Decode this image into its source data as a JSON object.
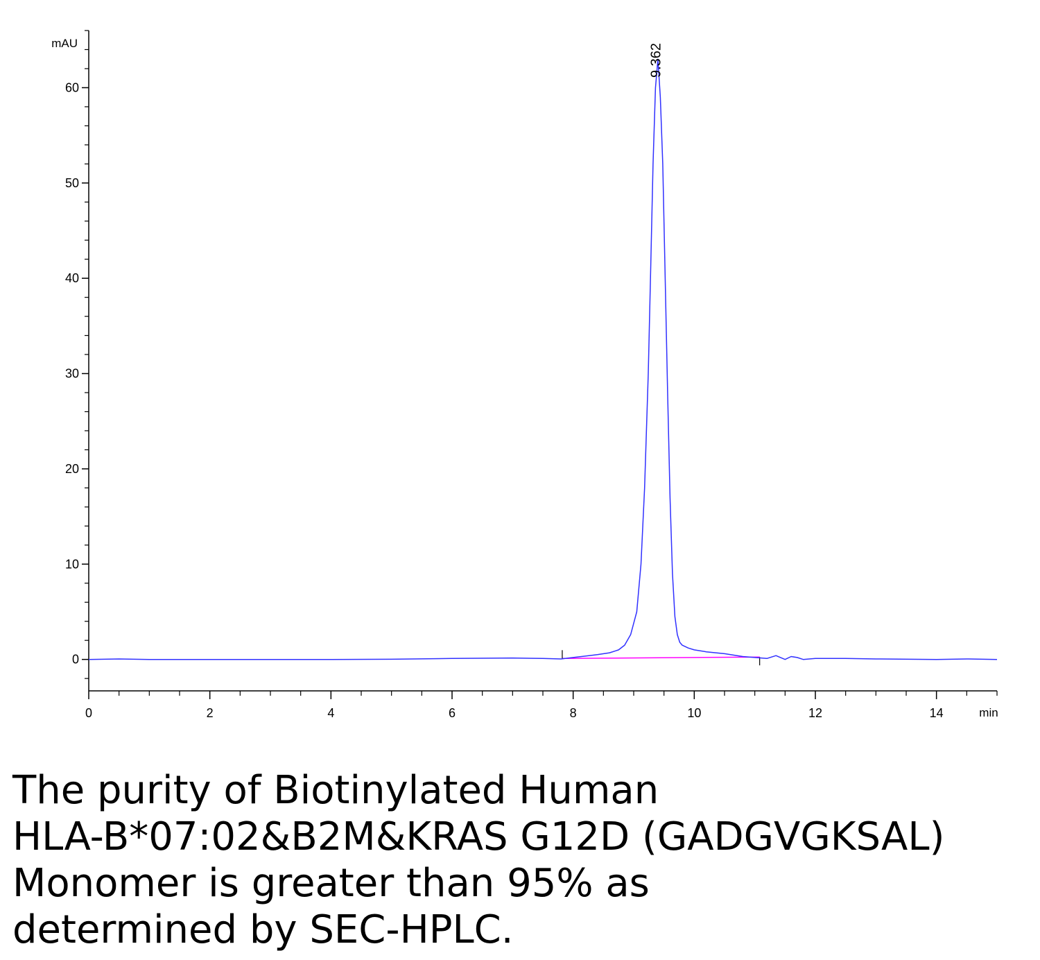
{
  "chart_data": {
    "type": "line",
    "ylabel": "mAU",
    "xlabel": "min",
    "xlim": [
      0,
      15
    ],
    "ylim": [
      -3.3,
      66
    ],
    "x_ticks": [
      0,
      2,
      4,
      6,
      8,
      10,
      12,
      14
    ],
    "y_ticks": [
      0,
      10,
      20,
      30,
      40,
      50,
      60
    ],
    "peak_label": "9.362",
    "peak_x": 9.362,
    "integration_start": 7.82,
    "integration_end": 11.08,
    "colors": {
      "signal": "#3030ff",
      "baseline": "#ff00ff",
      "axis": "#000000"
    },
    "series": [
      {
        "x": [
          0,
          0.5,
          1,
          2,
          3,
          4,
          5,
          6,
          7,
          7.5,
          7.8,
          8.0,
          8.2,
          8.4,
          8.6,
          8.75,
          8.85,
          8.95,
          9.05,
          9.12,
          9.18,
          9.24,
          9.28,
          9.32,
          9.36,
          9.4,
          9.44,
          9.48,
          9.52,
          9.56,
          9.6,
          9.64,
          9.68,
          9.72,
          9.76,
          9.8,
          9.9,
          10.0,
          10.2,
          10.5,
          10.8,
          11.0,
          11.2,
          11.35,
          11.5,
          11.6,
          11.7,
          11.8,
          12.0,
          12.5,
          13,
          14,
          14.5,
          15
        ],
        "y": [
          0,
          0.05,
          0,
          0,
          0,
          0,
          0.02,
          0.1,
          0.15,
          0.1,
          0.05,
          0.2,
          0.35,
          0.5,
          0.7,
          1.0,
          1.5,
          2.6,
          5.0,
          10.0,
          18.0,
          30.0,
          41.0,
          52.0,
          60.0,
          63.0,
          59.0,
          52.0,
          40.0,
          28.0,
          17.0,
          9.0,
          4.5,
          2.6,
          1.8,
          1.5,
          1.2,
          1.0,
          0.8,
          0.6,
          0.3,
          0.2,
          0.1,
          0.4,
          0.0,
          0.3,
          0.2,
          0.0,
          0.1,
          0.1,
          0.05,
          0.0,
          0.05,
          0.0
        ]
      }
    ],
    "baseline": {
      "x": [
        7.82,
        11.08
      ],
      "y": [
        0.1,
        0.25
      ]
    }
  },
  "caption": {
    "lines": [
      "The purity of Biotinylated Human",
      "HLA-B*07:02&B2M&KRAS G12D (GADGVGKSAL)",
      "Monomer is greater than 95% as",
      "determined by SEC-HPLC."
    ]
  }
}
